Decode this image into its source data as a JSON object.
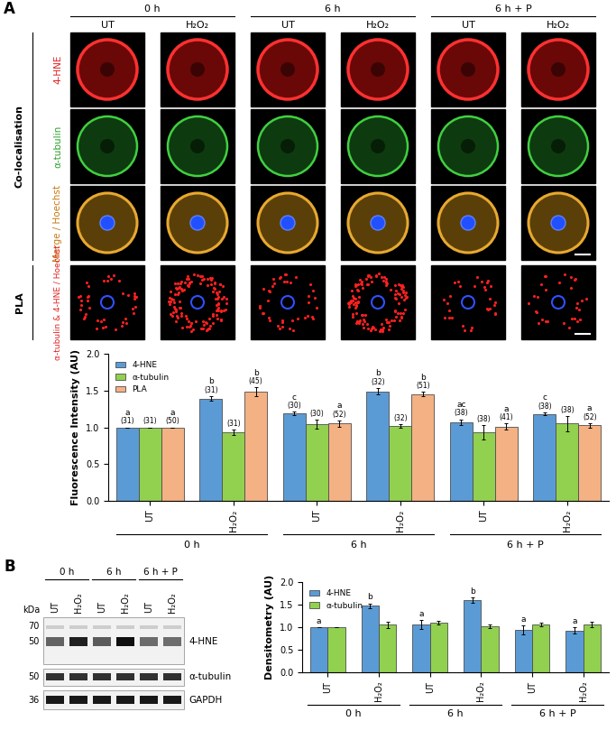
{
  "chart_data": [
    {
      "type": "bar",
      "ylabel": "Fluorescence Intensity (AU)",
      "categories": [
        "UT",
        "H₂O₂",
        "UT",
        "H₂O₂",
        "UT",
        "H₂O₂"
      ],
      "groups": [
        "0 h",
        "6 h",
        "6 h + P"
      ],
      "ylim": [
        0,
        2.0
      ],
      "yticks": [
        {
          "value": 0,
          "label": "0.0"
        },
        {
          "value": 0.5,
          "label": "0.5"
        },
        {
          "value": 1.0,
          "label": "1.0"
        },
        {
          "value": 1.5,
          "label": "1.5"
        },
        {
          "value": 2.0,
          "label": "2.0"
        }
      ],
      "legend": "upper left",
      "series": [
        {
          "name": "4-HNE",
          "color": "#5b9bd5",
          "values": [
            1.0,
            1.39,
            1.19,
            1.49,
            1.07,
            1.18
          ],
          "errors": [
            0,
            0.03,
            0.02,
            0.04,
            0.04,
            0.02
          ],
          "letters": [
            "a",
            "b",
            "c",
            "b",
            "ac",
            "c"
          ],
          "n_labels": [
            "(31)",
            "(31)",
            "(30)",
            "(32)",
            "(38)",
            "(38)"
          ]
        },
        {
          "name": "α-tubulin",
          "color": "#92d050",
          "values": [
            1.0,
            0.93,
            1.04,
            1.02,
            0.93,
            1.05
          ],
          "errors": [
            0,
            0.04,
            0.06,
            0.02,
            0.1,
            0.1
          ],
          "letters": [
            null,
            null,
            null,
            null,
            null,
            null
          ],
          "n_labels": [
            "(31)",
            "(31)",
            "(30)",
            "(32)",
            "(38)",
            "(38)"
          ]
        },
        {
          "name": "PLA",
          "color": "#f4b183",
          "values": [
            1.0,
            1.48,
            1.05,
            1.45,
            1.01,
            1.03
          ],
          "errors": [
            0,
            0.06,
            0.04,
            0.03,
            0.04,
            0.03
          ],
          "letters": [
            "a",
            "b",
            "a",
            "b",
            "a",
            "a"
          ],
          "n_labels": [
            "(50)",
            "(45)",
            "(52)",
            "(51)",
            "(41)",
            "(52)"
          ]
        }
      ]
    },
    {
      "type": "bar",
      "ylabel": "Densitometry (AU)",
      "categories": [
        "UT",
        "H₂O₂",
        "UT",
        "H₂O₂",
        "UT",
        "H₂O₂"
      ],
      "groups": [
        "0 h",
        "6 h",
        "6 h + P"
      ],
      "ylim": [
        0,
        2.0
      ],
      "yticks": [
        {
          "value": 0,
          "label": "0.0"
        },
        {
          "value": 0.5,
          "label": "0.5"
        },
        {
          "value": 1.0,
          "label": "1.0"
        },
        {
          "value": 1.5,
          "label": "1.5"
        },
        {
          "value": 2.0,
          "label": "2.0"
        }
      ],
      "legend": "upper left",
      "series": [
        {
          "name": "4-HNE",
          "color": "#5b9bd5",
          "values": [
            1.0,
            1.48,
            1.06,
            1.6,
            0.94,
            0.93
          ],
          "errors": [
            0,
            0.05,
            0.1,
            0.06,
            0.1,
            0.07
          ],
          "letters": [
            "a",
            "b",
            "a",
            "b",
            "a",
            "a"
          ]
        },
        {
          "name": "α-tubulin",
          "color": "#92d050",
          "values": [
            1.0,
            1.06,
            1.1,
            1.03,
            1.06,
            1.06
          ],
          "errors": [
            0,
            0.07,
            0.04,
            0.04,
            0.04,
            0.06
          ],
          "letters": [
            null,
            null,
            null,
            null,
            null,
            null
          ]
        }
      ]
    }
  ],
  "figure": {
    "panel_a": {
      "label": "A",
      "groups": [
        "0 h",
        "6 h",
        "6 h + P"
      ],
      "columns": [
        "UT",
        "H₂O₂",
        "UT",
        "H₂O₂",
        "UT",
        "H₂O₂"
      ],
      "sections": [
        {
          "label": "Co-localisation",
          "rows": [
            "4-HNE",
            "α-tubulin",
            "Merge / Hoechst"
          ]
        },
        {
          "label": "PLA",
          "rows": [
            "α-tubulin & 4-HNE / Hoechst"
          ]
        }
      ]
    },
    "panel_b": {
      "label": "B",
      "groups": [
        "0 h",
        "6 h",
        "6 h + P"
      ],
      "lanes": [
        "UT",
        "H₂O₂",
        "UT",
        "H₂O₂",
        "UT",
        "H₂O₂"
      ],
      "marker_unit": "kDa",
      "markers": [
        70,
        50,
        50,
        36
      ],
      "bands": [
        "4-HNE",
        "α-tubulin",
        "GAPDH"
      ]
    }
  }
}
